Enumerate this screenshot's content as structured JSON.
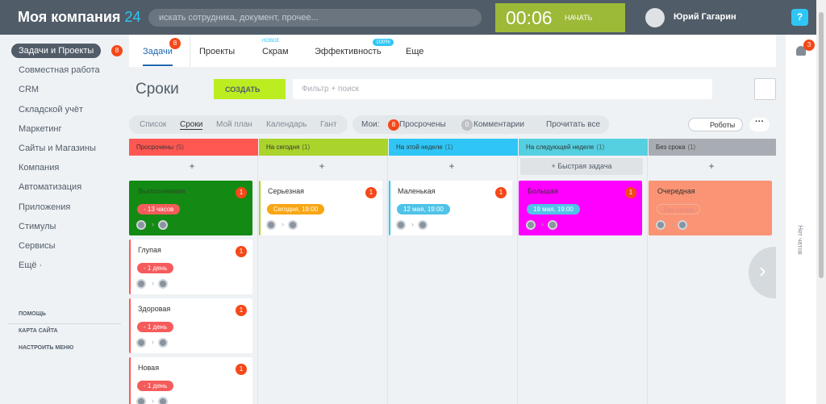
{
  "header": {
    "logo": "Моя компания",
    "logo_number": "24",
    "search_placeholder": "искать сотрудника, документ, прочее...",
    "timer": "00:06",
    "timer_button": "НАЧАТЬ",
    "user": "Юрий Гагарин"
  },
  "sidebar": {
    "items": [
      {
        "label": "Задачи и Проекты",
        "badge": "8"
      },
      {
        "label": "Совместная работа"
      },
      {
        "label": "CRM"
      },
      {
        "label": "Складской учёт"
      },
      {
        "label": "Маркетинг"
      },
      {
        "label": "Сайты и Магазины"
      },
      {
        "label": "Компания"
      },
      {
        "label": "Автоматизация"
      },
      {
        "label": "Приложения"
      },
      {
        "label": "Стимулы"
      },
      {
        "label": "Сервисы"
      },
      {
        "label": "Ещё ·"
      }
    ],
    "footer": [
      "ПОМОЩЬ",
      "КАРТА САЙТА",
      "НАСТРОИТЬ МЕНЮ"
    ]
  },
  "tabs": [
    {
      "label": "Задачи",
      "badge": "8"
    },
    {
      "label": "Проекты"
    },
    {
      "label": "Скрам",
      "tag": "НОВОЕ"
    },
    {
      "label": "Эффективность",
      "tag": "100%"
    },
    {
      "label": "Еще"
    }
  ],
  "page": {
    "title": "Сроки",
    "create_button": "СОЗДАТЬ",
    "filter_placeholder": "Фильтр + поиск"
  },
  "views": [
    "Список",
    "Сроки",
    "Мой план",
    "Календарь",
    "Гант"
  ],
  "counters": {
    "label": "Мои:",
    "items": [
      {
        "count": "8",
        "label": "Просрочены"
      },
      {
        "count": "0",
        "label": "Комментарии"
      }
    ],
    "read_all": "Прочитать все"
  },
  "robots": "Роботы",
  "columns": [
    {
      "title": "Просрочены",
      "count": "(5)",
      "color": "#ff5752",
      "add": "+",
      "cards": [
        {
          "title": "Выполняемая",
          "badge": "1",
          "deadline": "- 13 часов",
          "color": "#138a13",
          "deadline_color": "#f55b5b"
        },
        {
          "title": "Глупая",
          "badge": "1",
          "deadline": "- 1 день",
          "deadline_color": "#f55b5b"
        },
        {
          "title": "Здоровая",
          "badge": "1",
          "deadline": "- 1 день",
          "deadline_color": "#f55b5b"
        },
        {
          "title": "Новая",
          "badge": "1",
          "deadline": "- 1 день",
          "deadline_color": "#f55b5b"
        }
      ]
    },
    {
      "title": "На сегодня",
      "count": "(1)",
      "color": "#aad32c",
      "add": "+",
      "cards": [
        {
          "title": "Серьезная",
          "badge": "1",
          "deadline": "Сегодня, 19:00",
          "deadline_color": "#f9a614"
        }
      ]
    },
    {
      "title": "На этой неделе",
      "count": "(1)",
      "color": "#2fc6f6",
      "add": "+",
      "cards": [
        {
          "title": "Маленькая",
          "badge": "1",
          "deadline": "12 мая, 19:00",
          "deadline_color": "#4fc3e8"
        }
      ]
    },
    {
      "title": "На следующей неделе",
      "count": "(1)",
      "color": "#55d0e0",
      "add": "+ Быстрая задача",
      "cards": [
        {
          "title": "Большая",
          "badge": "1",
          "deadline": "19 мая, 19:00",
          "color": "#ff00ff",
          "deadline_color": "#4fc3e8"
        }
      ]
    },
    {
      "title": "Без срока",
      "count": "(1)",
      "color": "#a8adb4",
      "add": "+",
      "cards": [
        {
          "title": "Очередная",
          "deadline": "Без срока",
          "color": "#fa9474",
          "deadline_color": "transparent"
        }
      ]
    }
  ],
  "right_rail": {
    "notifications_badge": "3",
    "chats": "Нет чатов"
  }
}
